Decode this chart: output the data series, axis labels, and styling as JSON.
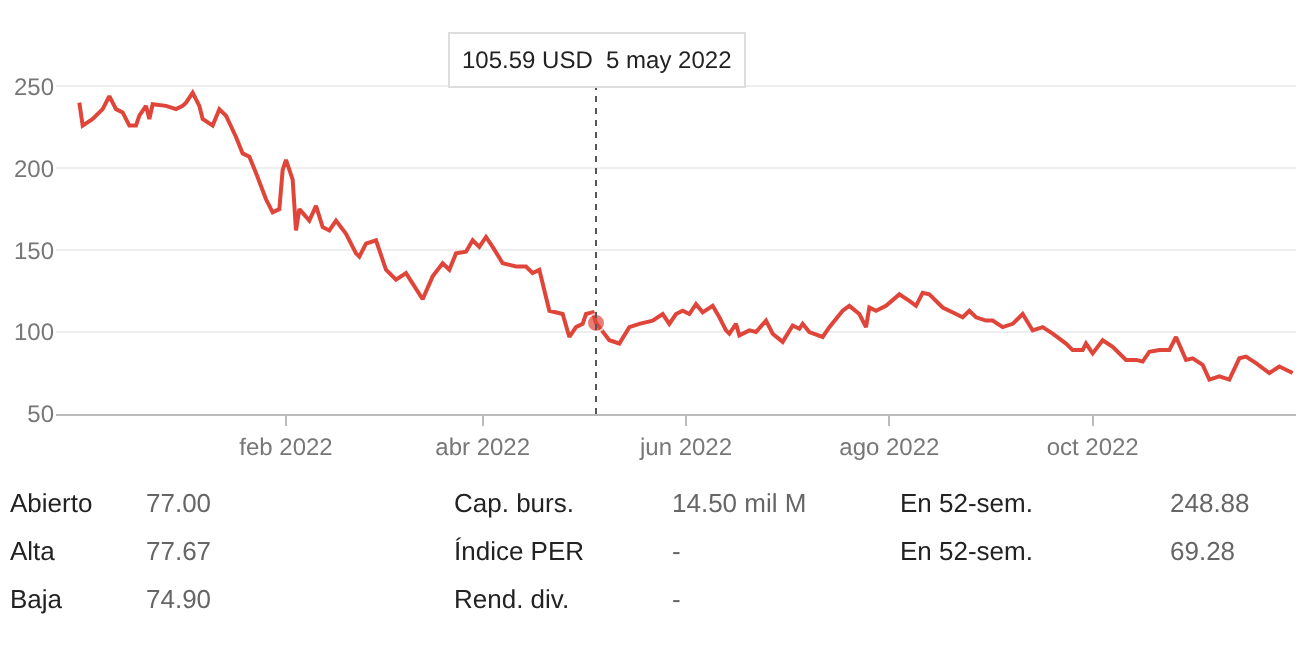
{
  "chart_data": [
    {
      "type": "line",
      "x": [
        "2021-12-01",
        "2021-12-02",
        "2021-12-05",
        "2021-12-08",
        "2021-12-10",
        "2021-12-12",
        "2021-12-14",
        "2021-12-16",
        "2021-12-18",
        "2021-12-19",
        "2021-12-21",
        "2021-12-22",
        "2021-12-23",
        "2021-12-27",
        "2021-12-30",
        "2022-01-01",
        "2022-01-02",
        "2022-01-04",
        "2022-01-06",
        "2022-01-07",
        "2022-01-10",
        "2022-01-12",
        "2022-01-14",
        "2022-01-17",
        "2022-01-19",
        "2022-01-21",
        "2022-01-23",
        "2022-01-26",
        "2022-01-28",
        "2022-01-30",
        "2022-01-31",
        "2022-02-01",
        "2022-02-03",
        "2022-02-04",
        "2022-02-05",
        "2022-02-08",
        "2022-02-10",
        "2022-02-12",
        "2022-02-14",
        "2022-02-16",
        "2022-02-19",
        "2022-02-22",
        "2022-02-23",
        "2022-02-25",
        "2022-02-28",
        "2022-03-01",
        "2022-03-03",
        "2022-03-06",
        "2022-03-09",
        "2022-03-14",
        "2022-03-17",
        "2022-03-20",
        "2022-03-22",
        "2022-03-24",
        "2022-03-27",
        "2022-03-29",
        "2022-03-31",
        "2022-04-02",
        "2022-04-04",
        "2022-04-07",
        "2022-04-11",
        "2022-04-14",
        "2022-04-16",
        "2022-04-18",
        "2022-04-21",
        "2022-04-25",
        "2022-04-27",
        "2022-04-29",
        "2022-05-01",
        "2022-05-02",
        "2022-05-04",
        "2022-05-05",
        "2022-05-09",
        "2022-05-12",
        "2022-05-15",
        "2022-05-18",
        "2022-05-22",
        "2022-05-25",
        "2022-05-27",
        "2022-05-29",
        "2022-05-31",
        "2022-06-02",
        "2022-06-04",
        "2022-06-06",
        "2022-06-09",
        "2022-06-11",
        "2022-06-13",
        "2022-06-14",
        "2022-06-16",
        "2022-06-17",
        "2022-06-20",
        "2022-06-22",
        "2022-06-25",
        "2022-06-27",
        "2022-06-30",
        "2022-07-03",
        "2022-07-05",
        "2022-07-06",
        "2022-07-08",
        "2022-07-12",
        "2022-07-14",
        "2022-07-18",
        "2022-07-20",
        "2022-07-23",
        "2022-07-25",
        "2022-07-26",
        "2022-07-28",
        "2022-07-31",
        "2022-08-04",
        "2022-08-07",
        "2022-08-09",
        "2022-08-11",
        "2022-08-13",
        "2022-08-17",
        "2022-08-21",
        "2022-08-23",
        "2022-08-25",
        "2022-08-27",
        "2022-08-30",
        "2022-09-01",
        "2022-09-04",
        "2022-09-07",
        "2022-09-10",
        "2022-09-13",
        "2022-09-16",
        "2022-09-19",
        "2022-09-23",
        "2022-09-25",
        "2022-09-28",
        "2022-09-29",
        "2022-10-01",
        "2022-10-04",
        "2022-10-07",
        "2022-10-11",
        "2022-10-14",
        "2022-10-16",
        "2022-10-18",
        "2022-10-21",
        "2022-10-24",
        "2022-10-26",
        "2022-10-29",
        "2022-10-31",
        "2022-11-03",
        "2022-11-05",
        "2022-11-08",
        "2022-11-11",
        "2022-11-14",
        "2022-11-16",
        "2022-11-19",
        "2022-11-23",
        "2022-11-26",
        "2022-11-30"
      ],
      "series": [
        {
          "color": "#e0453a",
          "values": [
            240,
            226,
            230,
            236,
            244,
            236,
            234,
            226,
            226,
            232,
            238,
            230,
            239,
            238,
            236,
            238,
            240,
            246,
            238,
            230,
            226,
            236,
            232,
            219,
            209,
            207,
            197,
            181,
            173,
            175,
            199,
            205,
            193,
            162,
            175,
            168,
            177,
            164,
            162,
            168,
            160,
            148,
            146,
            154,
            156,
            150,
            138,
            132,
            136,
            120,
            134,
            142,
            138,
            148,
            149,
            156,
            152,
            158,
            152,
            142,
            140,
            140,
            136,
            138,
            113,
            111,
            97,
            103,
            105,
            111,
            112,
            105.59,
            95,
            93,
            103,
            105,
            107,
            111,
            105,
            111,
            113,
            111,
            117,
            112,
            116,
            109,
            101,
            99,
            105,
            98,
            101,
            100,
            107,
            99,
            94,
            104,
            102,
            105,
            100,
            97,
            103,
            113,
            116,
            111,
            103,
            115,
            113,
            116,
            123,
            119,
            116,
            124,
            123,
            115,
            111,
            109,
            113,
            109,
            107,
            107,
            103,
            105,
            111,
            101,
            103,
            99,
            93,
            89,
            89,
            93,
            87,
            95,
            91,
            83,
            83,
            82,
            88,
            89,
            89,
            97,
            83,
            84,
            80,
            71,
            73,
            71,
            84,
            85,
            81,
            75,
            79,
            75
          ]
        }
      ],
      "xlim": [
        "2021-11-24",
        "2022-12-01"
      ],
      "xticks": [
        {
          "value": "2022-02-01",
          "label": "feb 2022"
        },
        {
          "value": "2022-04-01",
          "label": "abr 2022"
        },
        {
          "value": "2022-06-01",
          "label": "jun 2022"
        },
        {
          "value": "2022-08-01",
          "label": "ago 2022"
        },
        {
          "value": "2022-10-01",
          "label": "oct 2022"
        }
      ],
      "ylim": [
        50,
        266
      ],
      "yticks": [
        50,
        100,
        150,
        200,
        250
      ],
      "grid": "y",
      "legend": false,
      "marker": "none",
      "line_style": "solid",
      "ref_lines": [
        {
          "axis": "x",
          "value": "2022-05-05",
          "label": "105.59 USD  5 may 2022",
          "color": "#555555",
          "line_style": "dotted"
        }
      ]
    },
    {
      "type": "other",
      "annotations": [
        "Abierto",
        "77.00",
        "Cap. burs.",
        "14.50 mil M",
        "En 52-sem.",
        "248.88",
        "Alta",
        "77.67",
        "Índice PER",
        "-",
        "En 52-sem.",
        "69.28",
        "Baja",
        "74.90",
        "Rend. div.",
        "-"
      ]
    }
  ]
}
